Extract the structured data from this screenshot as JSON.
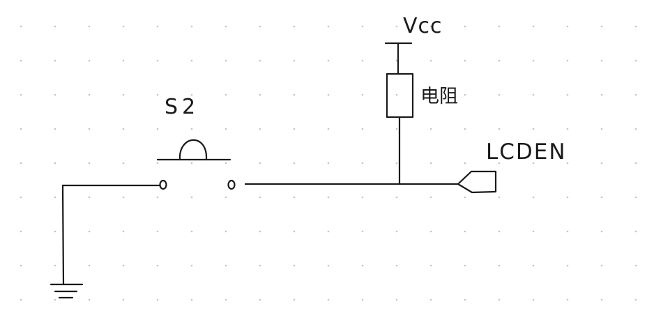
{
  "labels": {
    "vcc": "Vcc",
    "resistor": "电阻",
    "switch": "S2",
    "net": "LCDEN"
  },
  "colors": {
    "ink": "#1a1a1a",
    "grid_dot": "#c4c4c4",
    "background": "#ffffff"
  },
  "components": [
    {
      "type": "power-supply",
      "label_key": "vcc"
    },
    {
      "type": "resistor",
      "label_key": "resistor"
    },
    {
      "type": "push-button-switch",
      "label_key": "switch"
    },
    {
      "type": "net-label-port",
      "label_key": "net"
    },
    {
      "type": "ground"
    }
  ]
}
